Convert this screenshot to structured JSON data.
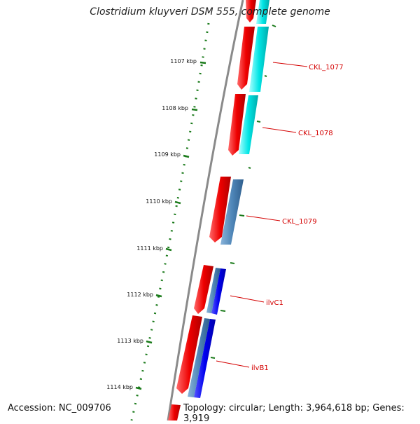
{
  "title": "Clostridium kluyveri DSM 555, complete genome",
  "footer": {
    "accession": "Accession: NC_009706",
    "summary": "Topology: circular; Length: 3,964,618 bp; Genes: 3,919"
  },
  "colors": {
    "backbone": "#888888",
    "tick": "#1a7a1a",
    "gene_label": "#d40000",
    "red": "#ee0000",
    "cyan": "#00e5e5",
    "steel": "#4f86b8",
    "blue": "#0000ee",
    "orange": "#ff9900"
  },
  "scale_labels": [
    "1107 kbp",
    "1108 kbp",
    "1109 kbp",
    "1110 kbp",
    "1111 kbp",
    "1112 kbp",
    "1113 kbp",
    "1114 kbp"
  ],
  "gene_labels": [
    "CKL_1077",
    "CKL_1078",
    "CKL_1079",
    "ilvC1",
    "ilvB1"
  ]
}
